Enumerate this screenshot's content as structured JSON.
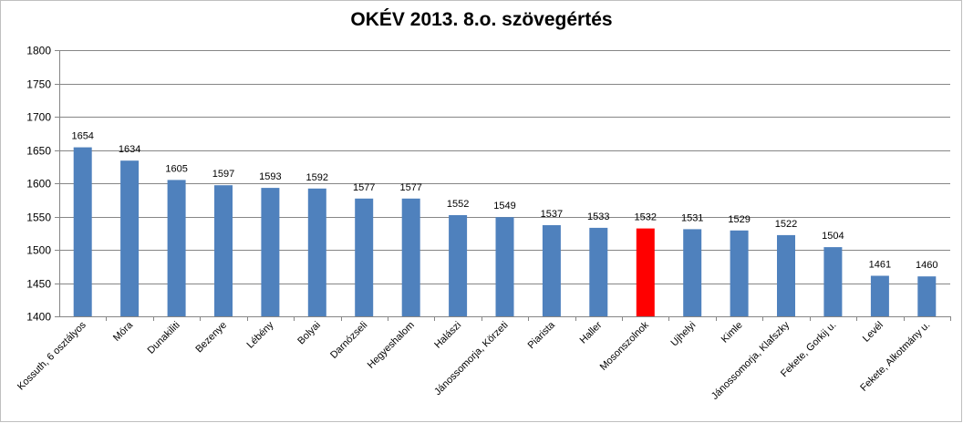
{
  "chart_data": {
    "type": "bar",
    "title": "OKÉV 2013. 8.o. szövegértés",
    "xlabel": "",
    "ylabel": "",
    "ylim": [
      1400,
      1800
    ],
    "yticks": [
      1400,
      1450,
      1500,
      1550,
      1600,
      1650,
      1700,
      1750,
      1800
    ],
    "grid": true,
    "legend": "none",
    "categories": [
      "Kossuth, 6 osztályos",
      "Móra",
      "Dunakiliti",
      "Bezenye",
      "Lébény",
      "Bolyai",
      "Darnózseli",
      "Hegyeshalom",
      "Halászi",
      "Jánossomorja, Körzeti",
      "Piarista",
      "Haller",
      "Mosonszolnok",
      "Ujhelyi",
      "Kimle",
      "Jánossomorja, Klafszky",
      "Fekete, Gorkij u.",
      "Levél",
      "Fekete, Alkotmány u."
    ],
    "values": [
      1654,
      1634,
      1605,
      1597,
      1593,
      1592,
      1577,
      1577,
      1552,
      1549,
      1537,
      1533,
      1532,
      1531,
      1529,
      1522,
      1504,
      1461,
      1460
    ],
    "colors": {
      "default": "#4f81bd",
      "highlight": "#ff0000",
      "grid": "#868686",
      "axis": "#868686"
    },
    "highlight_category": "Mosonszolnok"
  }
}
